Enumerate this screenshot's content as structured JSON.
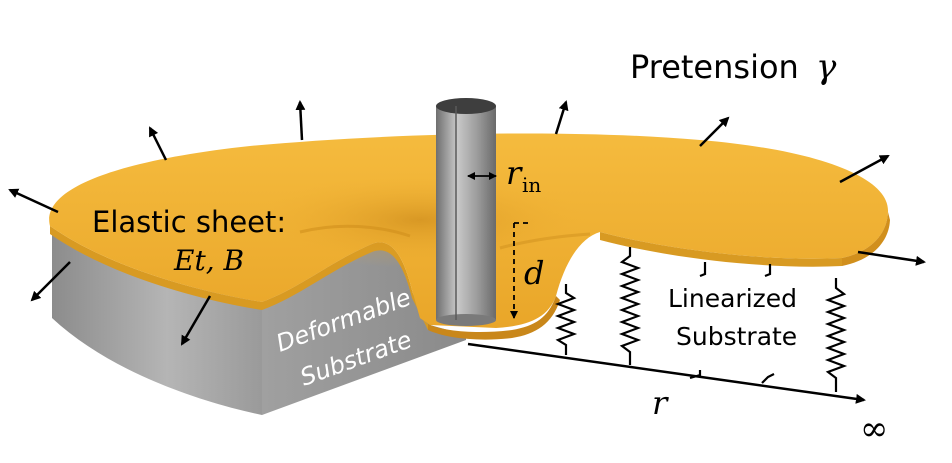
{
  "labels": {
    "pretension_text": "Pretension",
    "pretension_symbol": "γ",
    "elastic_sheet": "Elastic sheet:",
    "sheet_params": "Et, B",
    "deformable_line1": "Deformable",
    "deformable_line2": "Substrate",
    "linearized_line1": "Linearized",
    "linearized_line2": "Substrate",
    "r_in_main": "r",
    "r_in_sub": "in",
    "depth": "d",
    "radius": "r",
    "infinity": "∞"
  },
  "colors": {
    "sheet": "#f2b233",
    "sheet_shadow": "#d18f1c",
    "substrate": "#a7a7a7",
    "substrate_dark": "#8a8a8a",
    "indenter": "#9b9b9b",
    "indenter_top": "#3e3e3e",
    "arrow": "#000000",
    "substrate_text": "#ffffff"
  }
}
